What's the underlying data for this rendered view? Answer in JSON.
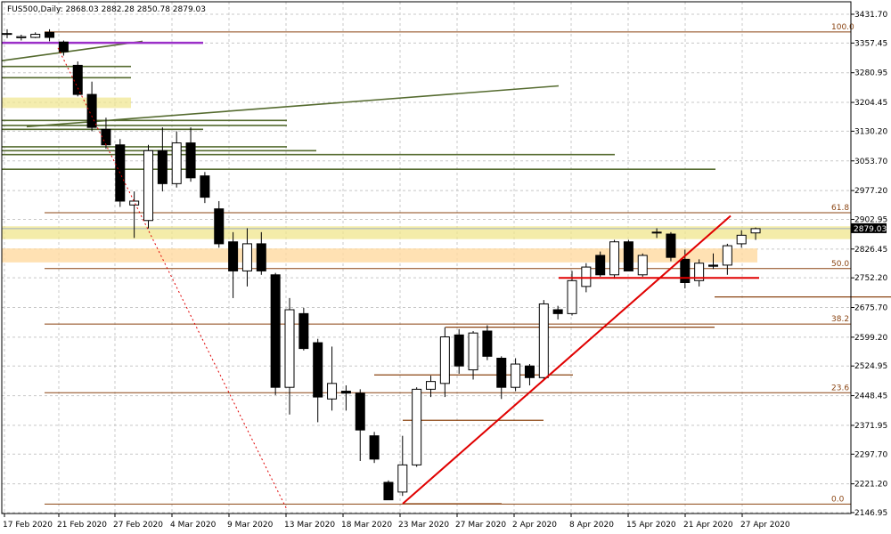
{
  "header": {
    "symbol": "FUS500,Daily:",
    "ohlc": "2868.03 2882.28 2850.78 2879.03"
  },
  "price_label": "2879.03",
  "colors": {
    "grid": "#c8c8c8",
    "bull": "#ffffff",
    "bear": "#000000",
    "fib": "#8b4513",
    "trendline": "#e00000",
    "purple": "#9b30c8",
    "olive": "#556b2f",
    "zone_yellow": "#f0e68c",
    "zone_orange": "#ffd9a0",
    "price_line": "#a0b0c0"
  },
  "chart_data": {
    "type": "candlestick",
    "symbol": "FUS500",
    "timeframe": "Daily",
    "ylim": [
      2146.95,
      3431.7
    ],
    "y_ticks": [
      "3431.70",
      "3357.45",
      "3280.95",
      "3204.45",
      "3130.20",
      "3053.70",
      "2977.20",
      "2902.95",
      "2826.45",
      "2752.20",
      "2675.70",
      "2599.20",
      "2524.95",
      "2448.45",
      "2371.95",
      "2297.70",
      "2221.20",
      "2146.95"
    ],
    "x_ticks": [
      "17 Feb 2020",
      "21 Feb 2020",
      "27 Feb 2020",
      "4 Mar 2020",
      "9 Mar 2020",
      "13 Mar 2020",
      "18 Mar 2020",
      "23 Mar 2020",
      "27 Mar 2020",
      "2 Apr 2020",
      "8 Apr 2020",
      "15 Apr 2020",
      "21 Apr 2020",
      "27 Apr 2020"
    ],
    "candles": [
      {
        "o": 3380,
        "h": 3393,
        "l": 3370,
        "c": 3382
      },
      {
        "o": 3371,
        "h": 3379,
        "l": 3364,
        "c": 3374
      },
      {
        "o": 3372,
        "h": 3385,
        "l": 3370,
        "c": 3380
      },
      {
        "o": 3385,
        "h": 3393,
        "l": 3362,
        "c": 3372
      },
      {
        "o": 3360,
        "h": 3364,
        "l": 3325,
        "c": 3335
      },
      {
        "o": 3300,
        "h": 3310,
        "l": 3220,
        "c": 3225
      },
      {
        "o": 3225,
        "h": 3258,
        "l": 3130,
        "c": 3140
      },
      {
        "o": 3135,
        "h": 3165,
        "l": 3085,
        "c": 3095
      },
      {
        "o": 3095,
        "h": 3110,
        "l": 2935,
        "c": 2950
      },
      {
        "o": 2940,
        "h": 2975,
        "l": 2855,
        "c": 2950
      },
      {
        "o": 2900,
        "h": 3095,
        "l": 2880,
        "c": 3080
      },
      {
        "o": 3080,
        "h": 3140,
        "l": 2975,
        "c": 2995
      },
      {
        "o": 2995,
        "h": 3130,
        "l": 2985,
        "c": 3100
      },
      {
        "o": 3100,
        "h": 3140,
        "l": 3000,
        "c": 3010
      },
      {
        "o": 3015,
        "h": 3025,
        "l": 2945,
        "c": 2960
      },
      {
        "o": 2930,
        "h": 2950,
        "l": 2830,
        "c": 2840
      },
      {
        "o": 2845,
        "h": 2870,
        "l": 2700,
        "c": 2770
      },
      {
        "o": 2770,
        "h": 2880,
        "l": 2730,
        "c": 2840
      },
      {
        "o": 2840,
        "h": 2870,
        "l": 2760,
        "c": 2770
      },
      {
        "o": 2760,
        "h": 2765,
        "l": 2450,
        "c": 2470
      },
      {
        "o": 2470,
        "h": 2700,
        "l": 2400,
        "c": 2670
      },
      {
        "o": 2660,
        "h": 2675,
        "l": 2565,
        "c": 2570
      },
      {
        "o": 2585,
        "h": 2595,
        "l": 2380,
        "c": 2445
      },
      {
        "o": 2440,
        "h": 2575,
        "l": 2410,
        "c": 2480
      },
      {
        "o": 2460,
        "h": 2475,
        "l": 2410,
        "c": 2455
      },
      {
        "o": 2455,
        "h": 2465,
        "l": 2280,
        "c": 2360
      },
      {
        "o": 2345,
        "h": 2355,
        "l": 2275,
        "c": 2285
      },
      {
        "o": 2225,
        "h": 2230,
        "l": 2180,
        "c": 2180
      },
      {
        "o": 2200,
        "h": 2345,
        "l": 2190,
        "c": 2270
      },
      {
        "o": 2270,
        "h": 2470,
        "l": 2265,
        "c": 2465
      },
      {
        "o": 2465,
        "h": 2500,
        "l": 2445,
        "c": 2485
      },
      {
        "o": 2480,
        "h": 2625,
        "l": 2445,
        "c": 2600
      },
      {
        "o": 2605,
        "h": 2620,
        "l": 2505,
        "c": 2525
      },
      {
        "o": 2515,
        "h": 2615,
        "l": 2490,
        "c": 2610
      },
      {
        "o": 2615,
        "h": 2630,
        "l": 2540,
        "c": 2550
      },
      {
        "o": 2545,
        "h": 2550,
        "l": 2440,
        "c": 2470
      },
      {
        "o": 2470,
        "h": 2545,
        "l": 2460,
        "c": 2530
      },
      {
        "o": 2525,
        "h": 2530,
        "l": 2475,
        "c": 2495
      },
      {
        "o": 2495,
        "h": 2695,
        "l": 2490,
        "c": 2685
      },
      {
        "o": 2670,
        "h": 2680,
        "l": 2645,
        "c": 2660
      },
      {
        "o": 2660,
        "h": 2770,
        "l": 2655,
        "c": 2745
      },
      {
        "o": 2730,
        "h": 2790,
        "l": 2715,
        "c": 2780
      },
      {
        "o": 2810,
        "h": 2820,
        "l": 2755,
        "c": 2760
      },
      {
        "o": 2760,
        "h": 2850,
        "l": 2750,
        "c": 2845
      },
      {
        "o": 2845,
        "h": 2850,
        "l": 2770,
        "c": 2770
      },
      {
        "o": 2760,
        "h": 2815,
        "l": 2755,
        "c": 2810
      },
      {
        "o": 2870,
        "h": 2880,
        "l": 2855,
        "c": 2868
      },
      {
        "o": 2865,
        "h": 2870,
        "l": 2795,
        "c": 2805
      },
      {
        "o": 2800,
        "h": 2825,
        "l": 2725,
        "c": 2740
      },
      {
        "o": 2745,
        "h": 2800,
        "l": 2730,
        "c": 2790
      },
      {
        "o": 2785,
        "h": 2815,
        "l": 2775,
        "c": 2782
      },
      {
        "o": 2785,
        "h": 2840,
        "l": 2760,
        "c": 2835
      },
      {
        "o": 2840,
        "h": 2875,
        "l": 2830,
        "c": 2862
      },
      {
        "o": 2868,
        "h": 2882,
        "l": 2850,
        "c": 2879
      }
    ],
    "fibonacci": [
      {
        "label": "100.0",
        "price": 3386
      },
      {
        "label": "61.8",
        "price": 2920
      },
      {
        "label": "50.0",
        "price": 2776
      },
      {
        "label": "38.2",
        "price": 2633
      },
      {
        "label": "23.6",
        "price": 2456
      },
      {
        "label": "0.0",
        "price": 2169
      }
    ]
  }
}
